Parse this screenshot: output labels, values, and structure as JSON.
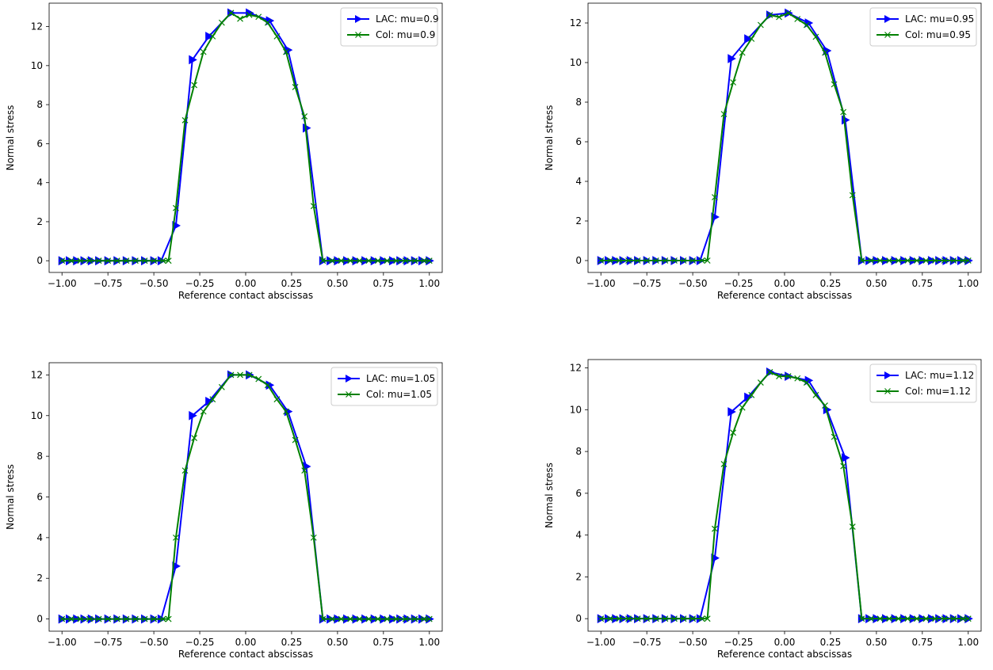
{
  "colors": {
    "lac": "#0000ff",
    "col": "#008000"
  },
  "chart_data": [
    {
      "type": "line",
      "xlabel": "Reference contact abscissas",
      "ylabel": "Normal stress",
      "xlim": [
        -1.07,
        1.07
      ],
      "ylim": [
        -0.6,
        13.2
      ],
      "xticks": [
        "−1.00",
        "−0.75",
        "−0.50",
        "−0.25",
        "0.00",
        "0.25",
        "0.50",
        "0.75",
        "1.00"
      ],
      "xtick_values": [
        -1.0,
        -0.75,
        -0.5,
        -0.25,
        0.0,
        0.25,
        0.5,
        0.75,
        1.0
      ],
      "yticks": [
        "0",
        "2",
        "4",
        "6",
        "8",
        "10",
        "12"
      ],
      "ytick_values": [
        0,
        2,
        4,
        6,
        8,
        10,
        12
      ],
      "legend_position": "upper-right",
      "series": [
        {
          "name": "LAC: mu=0.9",
          "marker": "triangle-right",
          "color": "#0000ff",
          "x": [
            -1.0,
            -0.96,
            -0.92,
            -0.88,
            -0.84,
            -0.8,
            -0.75,
            -0.7,
            -0.65,
            -0.6,
            -0.55,
            -0.5,
            -0.46,
            -0.38,
            -0.29,
            -0.2,
            -0.08,
            0.02,
            0.13,
            0.23,
            0.33,
            0.42,
            0.46,
            0.5,
            0.55,
            0.6,
            0.65,
            0.7,
            0.75,
            0.8,
            0.84,
            0.88,
            0.92,
            0.96,
            1.0
          ],
          "y": [
            0,
            0,
            0,
            0,
            0,
            0,
            0,
            0,
            0,
            0,
            0,
            0,
            0,
            1.8,
            10.3,
            11.5,
            12.7,
            12.7,
            12.3,
            10.8,
            6.8,
            0,
            0,
            0,
            0,
            0,
            0,
            0,
            0,
            0,
            0,
            0,
            0,
            0,
            0
          ]
        },
        {
          "name": "Col: mu=0.9",
          "marker": "x",
          "color": "#008000",
          "x": [
            -1.0,
            -0.95,
            -0.9,
            -0.85,
            -0.8,
            -0.75,
            -0.7,
            -0.65,
            -0.6,
            -0.55,
            -0.5,
            -0.45,
            -0.42,
            -0.38,
            -0.33,
            -0.28,
            -0.23,
            -0.18,
            -0.13,
            -0.08,
            -0.03,
            0.02,
            0.07,
            0.12,
            0.17,
            0.22,
            0.27,
            0.32,
            0.37,
            0.42,
            0.47,
            0.52,
            0.57,
            0.62,
            0.67,
            0.72,
            0.77,
            0.82,
            0.87,
            0.92,
            0.97,
            1.0
          ],
          "y": [
            0,
            0,
            0,
            0,
            0,
            0,
            0,
            0,
            0,
            0,
            0,
            0,
            0,
            2.7,
            7.2,
            9.0,
            10.7,
            11.5,
            12.2,
            12.7,
            12.4,
            12.6,
            12.5,
            12.2,
            11.5,
            10.7,
            8.9,
            7.4,
            2.8,
            0,
            0,
            0,
            0,
            0,
            0,
            0,
            0,
            0,
            0,
            0,
            0,
            0
          ]
        }
      ]
    },
    {
      "type": "line",
      "xlabel": "Reference contact abscissas",
      "ylabel": "Normal stress",
      "xlim": [
        -1.07,
        1.07
      ],
      "ylim": [
        -0.6,
        13.0
      ],
      "xticks": [
        "−1.00",
        "−0.75",
        "−0.50",
        "−0.25",
        "0.00",
        "0.25",
        "0.50",
        "0.75",
        "1.00"
      ],
      "xtick_values": [
        -1.0,
        -0.75,
        -0.5,
        -0.25,
        0.0,
        0.25,
        0.5,
        0.75,
        1.0
      ],
      "yticks": [
        "0",
        "2",
        "4",
        "6",
        "8",
        "10",
        "12"
      ],
      "ytick_values": [
        0,
        2,
        4,
        6,
        8,
        10,
        12
      ],
      "legend_position": "upper-right",
      "series": [
        {
          "name": "LAC: mu=0.95",
          "marker": "triangle-right",
          "color": "#0000ff",
          "x": [
            -1.0,
            -0.96,
            -0.92,
            -0.88,
            -0.84,
            -0.8,
            -0.75,
            -0.7,
            -0.65,
            -0.6,
            -0.55,
            -0.5,
            -0.46,
            -0.38,
            -0.29,
            -0.2,
            -0.08,
            0.02,
            0.13,
            0.23,
            0.33,
            0.42,
            0.46,
            0.5,
            0.55,
            0.6,
            0.65,
            0.7,
            0.75,
            0.8,
            0.84,
            0.88,
            0.92,
            0.96,
            1.0
          ],
          "y": [
            0,
            0,
            0,
            0,
            0,
            0,
            0,
            0,
            0,
            0,
            0,
            0,
            0,
            2.2,
            10.2,
            11.2,
            12.4,
            12.5,
            12.0,
            10.6,
            7.1,
            0,
            0,
            0,
            0,
            0,
            0,
            0,
            0,
            0,
            0,
            0,
            0,
            0,
            0
          ]
        },
        {
          "name": "Col: mu=0.95",
          "marker": "x",
          "color": "#008000",
          "x": [
            -1.0,
            -0.95,
            -0.9,
            -0.85,
            -0.8,
            -0.75,
            -0.7,
            -0.65,
            -0.6,
            -0.55,
            -0.5,
            -0.45,
            -0.42,
            -0.38,
            -0.33,
            -0.28,
            -0.23,
            -0.18,
            -0.13,
            -0.08,
            -0.03,
            0.02,
            0.07,
            0.12,
            0.17,
            0.22,
            0.27,
            0.32,
            0.37,
            0.42,
            0.47,
            0.52,
            0.57,
            0.62,
            0.67,
            0.72,
            0.77,
            0.82,
            0.87,
            0.92,
            0.97,
            1.0
          ],
          "y": [
            0,
            0,
            0,
            0,
            0,
            0,
            0,
            0,
            0,
            0,
            0,
            0,
            0,
            3.2,
            7.4,
            9.0,
            10.5,
            11.2,
            11.9,
            12.4,
            12.3,
            12.5,
            12.2,
            11.9,
            11.3,
            10.5,
            8.9,
            7.5,
            3.3,
            0,
            0,
            0,
            0,
            0,
            0,
            0,
            0,
            0,
            0,
            0,
            0,
            0
          ]
        }
      ]
    },
    {
      "type": "line",
      "xlabel": "Reference contact abscissas",
      "ylabel": "Normal stress",
      "xlim": [
        -1.07,
        1.07
      ],
      "ylim": [
        -0.6,
        12.6
      ],
      "xticks": [
        "−1.00",
        "−0.75",
        "−0.50",
        "−0.25",
        "0.00",
        "0.25",
        "0.50",
        "0.75",
        "1.00"
      ],
      "xtick_values": [
        -1.0,
        -0.75,
        -0.5,
        -0.25,
        0.0,
        0.25,
        0.5,
        0.75,
        1.0
      ],
      "yticks": [
        "0",
        "2",
        "4",
        "6",
        "8",
        "10",
        "12"
      ],
      "ytick_values": [
        0,
        2,
        4,
        6,
        8,
        10,
        12
      ],
      "legend_position": "upper-right",
      "series": [
        {
          "name": "LAC: mu=1.05",
          "marker": "triangle-right",
          "color": "#0000ff",
          "x": [
            -1.0,
            -0.96,
            -0.92,
            -0.88,
            -0.84,
            -0.8,
            -0.75,
            -0.7,
            -0.65,
            -0.6,
            -0.55,
            -0.5,
            -0.46,
            -0.38,
            -0.29,
            -0.2,
            -0.08,
            0.02,
            0.13,
            0.23,
            0.33,
            0.42,
            0.46,
            0.5,
            0.55,
            0.6,
            0.65,
            0.7,
            0.75,
            0.8,
            0.84,
            0.88,
            0.92,
            0.96,
            1.0
          ],
          "y": [
            0,
            0,
            0,
            0,
            0,
            0,
            0,
            0,
            0,
            0,
            0,
            0,
            0,
            2.6,
            10.0,
            10.7,
            12.0,
            12.0,
            11.5,
            10.2,
            7.5,
            0,
            0,
            0,
            0,
            0,
            0,
            0,
            0,
            0,
            0,
            0,
            0,
            0,
            0
          ]
        },
        {
          "name": "Col: mu=1.05",
          "marker": "x",
          "color": "#008000",
          "x": [
            -1.0,
            -0.95,
            -0.9,
            -0.85,
            -0.8,
            -0.75,
            -0.7,
            -0.65,
            -0.6,
            -0.55,
            -0.5,
            -0.45,
            -0.42,
            -0.38,
            -0.33,
            -0.28,
            -0.23,
            -0.18,
            -0.13,
            -0.08,
            -0.03,
            0.02,
            0.07,
            0.12,
            0.17,
            0.22,
            0.27,
            0.32,
            0.37,
            0.42,
            0.47,
            0.52,
            0.57,
            0.62,
            0.67,
            0.72,
            0.77,
            0.82,
            0.87,
            0.92,
            0.97,
            1.0
          ],
          "y": [
            0,
            0,
            0,
            0,
            0,
            0,
            0,
            0,
            0,
            0,
            0,
            0,
            0,
            4.0,
            7.3,
            8.9,
            10.2,
            10.8,
            11.4,
            12.0,
            12.0,
            12.0,
            11.8,
            11.5,
            10.8,
            10.2,
            8.8,
            7.3,
            4.0,
            0,
            0,
            0,
            0,
            0,
            0,
            0,
            0,
            0,
            0,
            0,
            0,
            0
          ]
        }
      ]
    },
    {
      "type": "line",
      "xlabel": "Reference contact abscissas",
      "ylabel": "Normal stress",
      "xlim": [
        -1.07,
        1.07
      ],
      "ylim": [
        -0.6,
        12.4
      ],
      "xticks": [
        "−1.00",
        "−0.75",
        "−0.50",
        "−0.25",
        "0.00",
        "0.25",
        "0.50",
        "0.75",
        "1.00"
      ],
      "xtick_values": [
        -1.0,
        -0.75,
        -0.5,
        -0.25,
        0.0,
        0.25,
        0.5,
        0.75,
        1.0
      ],
      "yticks": [
        "0",
        "2",
        "4",
        "6",
        "8",
        "10",
        "12"
      ],
      "ytick_values": [
        0,
        2,
        4,
        6,
        8,
        10,
        12
      ],
      "legend_position": "upper-right",
      "series": [
        {
          "name": "LAC: mu=1.12",
          "marker": "triangle-right",
          "color": "#0000ff",
          "x": [
            -1.0,
            -0.96,
            -0.92,
            -0.88,
            -0.84,
            -0.8,
            -0.75,
            -0.7,
            -0.65,
            -0.6,
            -0.55,
            -0.5,
            -0.46,
            -0.38,
            -0.29,
            -0.2,
            -0.08,
            0.02,
            0.13,
            0.23,
            0.33,
            0.42,
            0.46,
            0.5,
            0.55,
            0.6,
            0.65,
            0.7,
            0.75,
            0.8,
            0.84,
            0.88,
            0.92,
            0.96,
            1.0
          ],
          "y": [
            0,
            0,
            0,
            0,
            0,
            0,
            0,
            0,
            0,
            0,
            0,
            0,
            0,
            2.9,
            9.9,
            10.6,
            11.8,
            11.6,
            11.4,
            10.0,
            7.7,
            0,
            0,
            0,
            0,
            0,
            0,
            0,
            0,
            0,
            0,
            0,
            0,
            0,
            0
          ]
        },
        {
          "name": "Col: mu=1.12",
          "marker": "x",
          "color": "#008000",
          "x": [
            -1.0,
            -0.95,
            -0.9,
            -0.85,
            -0.8,
            -0.75,
            -0.7,
            -0.65,
            -0.6,
            -0.55,
            -0.5,
            -0.45,
            -0.42,
            -0.38,
            -0.33,
            -0.28,
            -0.23,
            -0.18,
            -0.13,
            -0.08,
            -0.03,
            0.02,
            0.07,
            0.12,
            0.17,
            0.22,
            0.27,
            0.32,
            0.37,
            0.42,
            0.47,
            0.52,
            0.57,
            0.62,
            0.67,
            0.72,
            0.77,
            0.82,
            0.87,
            0.92,
            0.97,
            1.0
          ],
          "y": [
            0,
            0,
            0,
            0,
            0,
            0,
            0,
            0,
            0,
            0,
            0,
            0,
            0,
            4.3,
            7.4,
            8.9,
            10.1,
            10.7,
            11.3,
            11.8,
            11.6,
            11.6,
            11.5,
            11.3,
            10.7,
            10.2,
            8.7,
            7.3,
            4.4,
            0,
            0,
            0,
            0,
            0,
            0,
            0,
            0,
            0,
            0,
            0,
            0,
            0
          ]
        }
      ]
    }
  ]
}
